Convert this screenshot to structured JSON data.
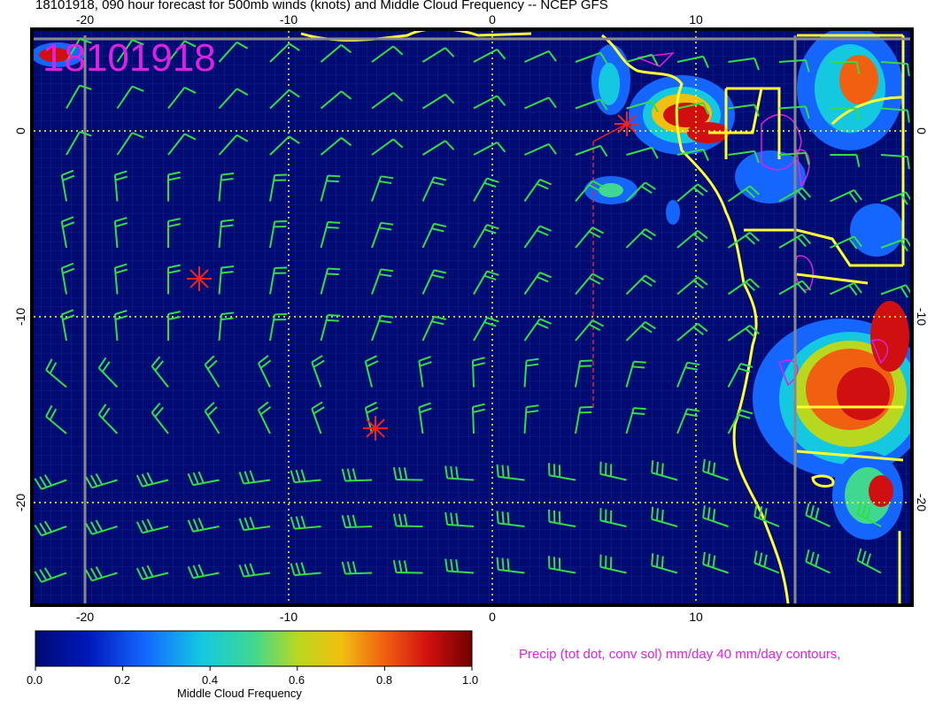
{
  "title": "18101918, 090 hour forecast for 500mb winds (knots) and Middle Cloud Frequency -- NCEP GFS",
  "stamp": "18101918",
  "map": {
    "lon_range": [
      -22.5,
      20.5
    ],
    "lat_range": [
      -25.5,
      5
    ],
    "x_ticks": [
      -20,
      -10,
      0,
      10
    ],
    "y_ticks": [
      0,
      -10,
      -20
    ],
    "grid": true,
    "colors": {
      "ocean_background": "#000a73",
      "coastline": "#ffff33",
      "wind_barbs": "#33dd44",
      "markers": "#ee2222",
      "precip_contours": "#e020e0",
      "graticule": "#ffff33"
    }
  },
  "colorbar": {
    "title": "Middle Cloud Frequency",
    "ticks": [
      "0.0",
      "0.2",
      "0.4",
      "0.6",
      "0.8",
      "1.0"
    ],
    "range": [
      0,
      1
    ]
  },
  "precip_note": "Precip (tot dot, conv sol) mm/day 40 mm/day contours,"
}
